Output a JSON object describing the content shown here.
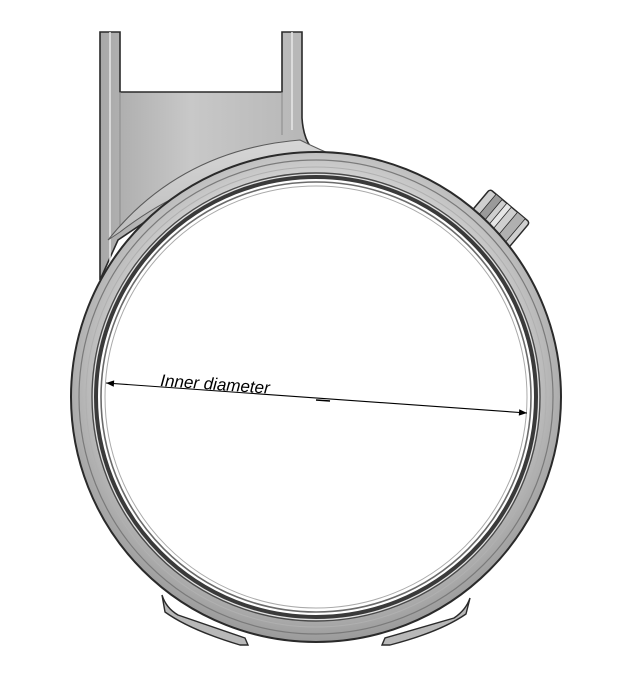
{
  "figure": {
    "annotation_label": "Inner diameter",
    "colors": {
      "background": "#ffffff",
      "metal_light": "#e4e4e4",
      "metal_mid": "#c4c4c4",
      "metal_dark": "#8a8a8a",
      "outline": "#2a2a2a",
      "inner_band": "#3a3a3a",
      "dimension_line": "#000000"
    }
  }
}
